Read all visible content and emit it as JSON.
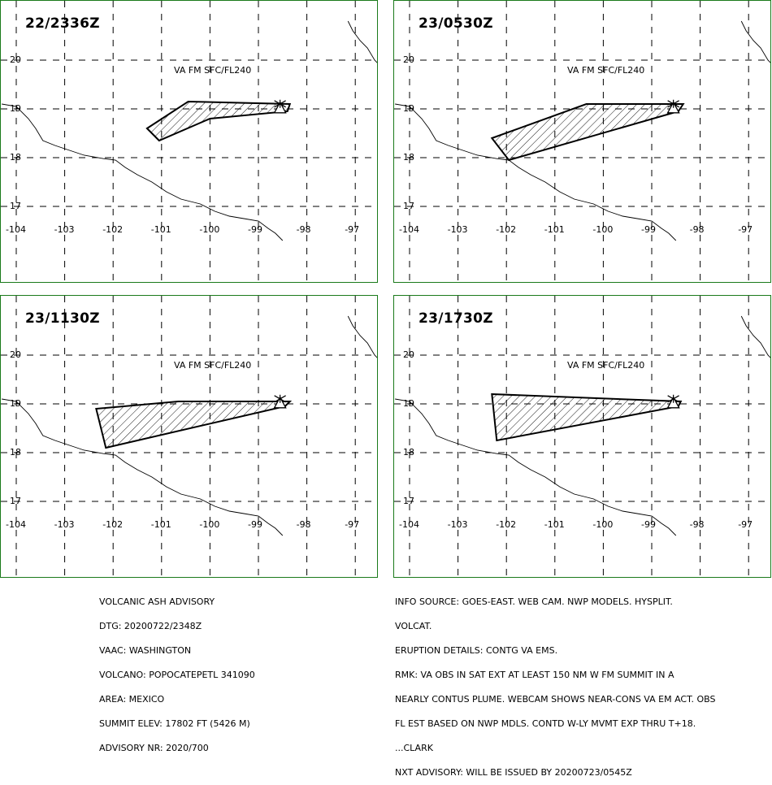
{
  "panels": [
    {
      "time": "22/2336Z",
      "label": "VA FM SFC/FL240",
      "polygon": [
        [
          -101.3,
          18.6
        ],
        [
          -100.45,
          19.15
        ],
        [
          -98.35,
          19.1
        ],
        [
          -98.4,
          18.95
        ],
        [
          -100.0,
          18.8
        ],
        [
          -101.05,
          18.35
        ]
      ]
    },
    {
      "time": "23/0530Z",
      "label": "VA FM SFC/FL240",
      "polygon": [
        [
          -102.3,
          18.4
        ],
        [
          -100.35,
          19.1
        ],
        [
          -98.35,
          19.1
        ],
        [
          -98.45,
          18.95
        ],
        [
          -101.95,
          17.95
        ]
      ]
    },
    {
      "time": "23/1130Z",
      "label": "VA FM SFC/FL240",
      "polygon": [
        [
          -102.35,
          18.9
        ],
        [
          -100.65,
          19.05
        ],
        [
          -98.35,
          19.05
        ],
        [
          -98.45,
          18.95
        ],
        [
          -102.15,
          18.1
        ]
      ]
    },
    {
      "time": "23/1730Z",
      "label": "VA FM SFC/FL240",
      "polygon": [
        [
          -102.3,
          19.2
        ],
        [
          -98.4,
          19.05
        ],
        [
          -98.45,
          18.95
        ],
        [
          -102.2,
          18.25
        ]
      ]
    }
  ],
  "axes": {
    "lon_ticks": [
      "-104",
      "-103",
      "-102",
      "-101",
      "-100",
      "-99",
      "-98",
      "-97"
    ],
    "lat_ticks": [
      "20",
      "19",
      "18",
      "17"
    ]
  },
  "volcano": {
    "lon": -98.62,
    "lat": 19.02
  },
  "advisory_left": [
    "VOLCANIC ASH ADVISORY",
    "DTG: 20200722/2348Z",
    "VAAC: WASHINGTON",
    "VOLCANO: POPOCATEPETL 341090",
    "AREA: MEXICO",
    "SUMMIT ELEV: 17802 FT (5426 M)",
    "ADVISORY NR: 2020/700"
  ],
  "advisory_right": [
    "INFO SOURCE: GOES-EAST. WEB CAM. NWP MODELS. HYSPLIT.",
    "VOLCAT.",
    "ERUPTION DETAILS: CONTG VA EMS.",
    "RMK: VA OBS IN SAT EXT AT LEAST 150 NM W FM SUMMIT IN A",
    "NEARLY CONTUS PLUME. WEBCAM SHOWS NEAR-CONS VA EM ACT. OBS",
    "FL EST BASED ON NWP MDLS. CONTD W-LY MVMT EXP THRU T+18.",
    "...CLARK",
    "NXT ADVISORY: WILL BE ISSUED BY 20200723/0545Z"
  ]
}
